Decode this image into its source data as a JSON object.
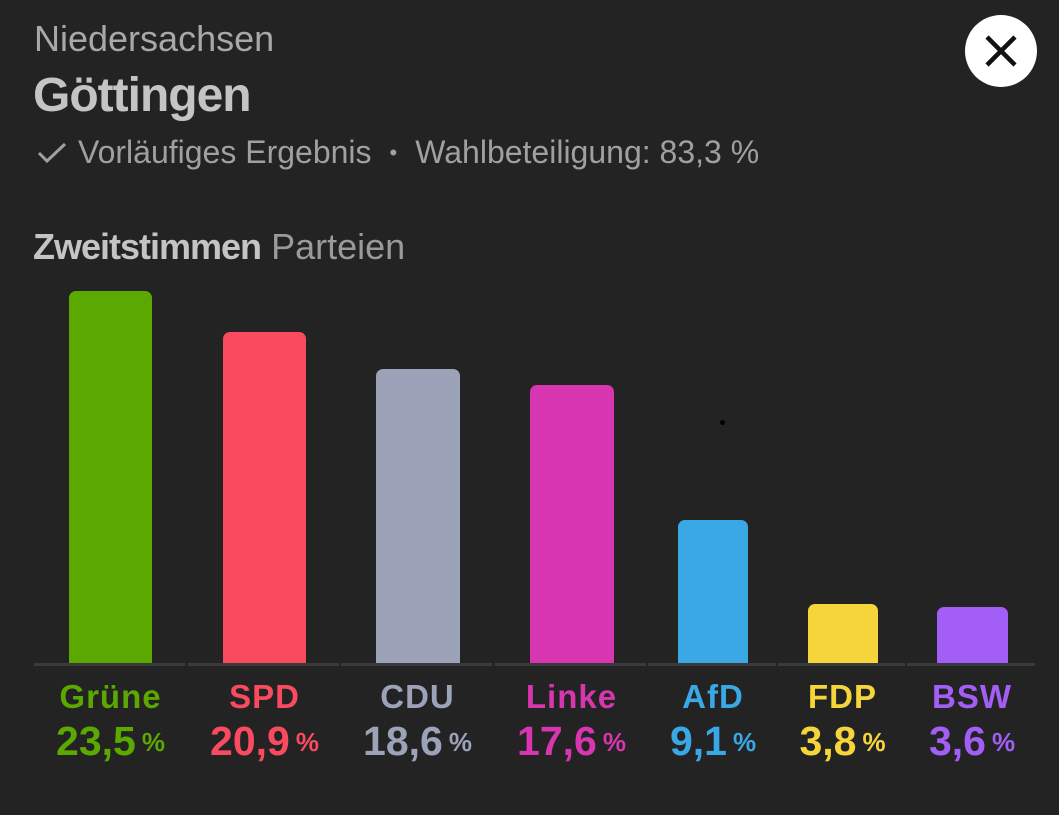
{
  "header": {
    "state": "Niedersachsen",
    "title": "Göttingen",
    "status": "Vorläufiges Ergebnis",
    "separator": "•",
    "turnout_label": "Wahlbeteiligung: 83,3 %",
    "icons": {
      "status": "check-icon",
      "close": "close-icon"
    }
  },
  "section": {
    "title_bold": "Zweitstimmen",
    "title_light": "Parteien"
  },
  "chart_data": {
    "type": "bar",
    "title": "Zweitstimmen Parteien",
    "categories": [
      "Grüne",
      "SPD",
      "CDU",
      "Linke",
      "AfD",
      "FDP",
      "BSW"
    ],
    "values": [
      23.5,
      20.9,
      18.6,
      17.6,
      9.1,
      3.8,
      3.6
    ],
    "value_labels": [
      "23,5",
      "20,9",
      "18,6",
      "17,6",
      "9,1",
      "3,8",
      "3,6"
    ],
    "unit": "%",
    "colors": [
      "#5aa800",
      "#fa4a60",
      "#9ca3b8",
      "#d835b0",
      "#3aa8e4",
      "#f5d53a",
      "#a35ff5"
    ],
    "ylim": [
      0,
      23.5
    ],
    "grid": false
  }
}
